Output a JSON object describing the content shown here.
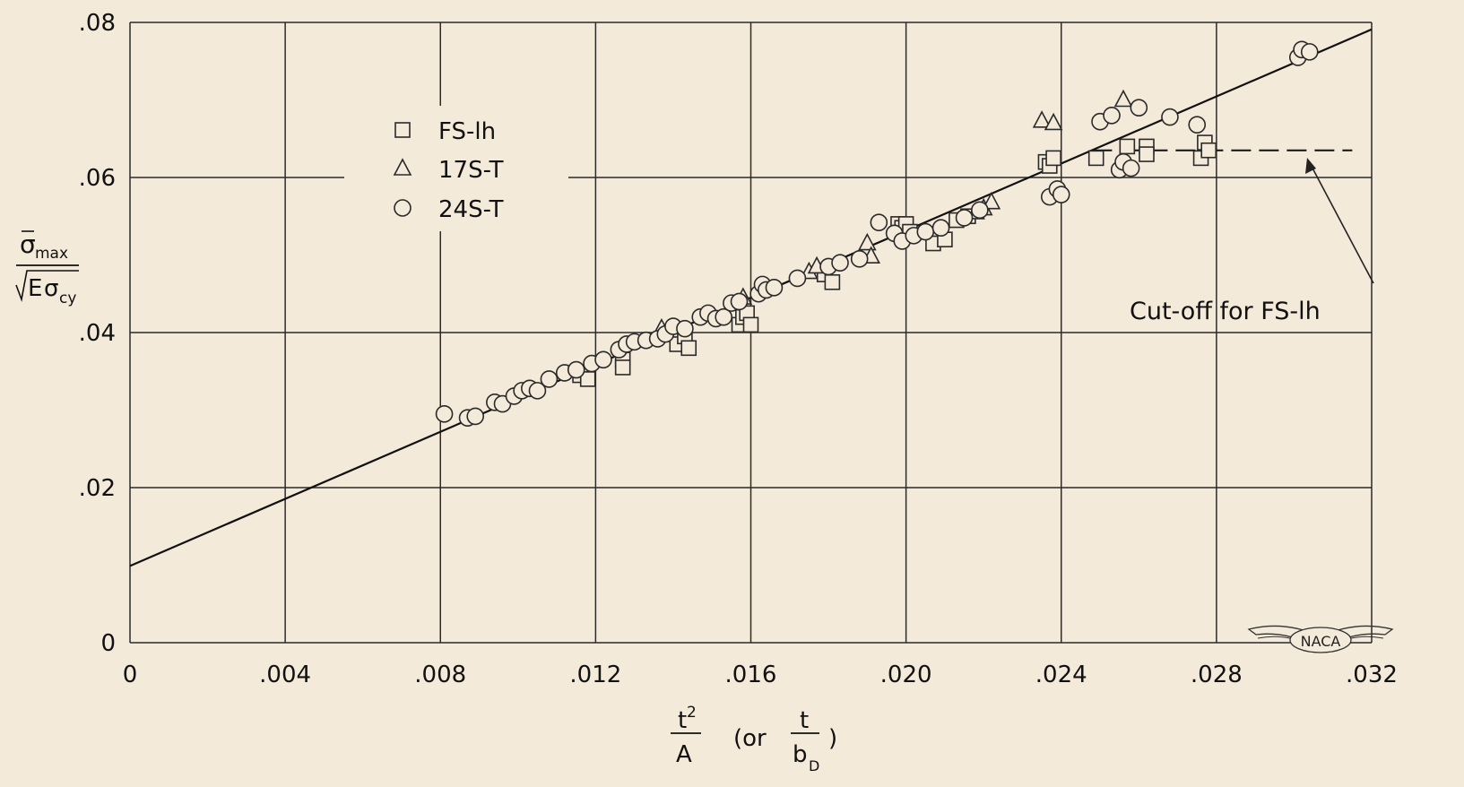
{
  "chart_data": {
    "type": "scatter",
    "xlim": [
      0,
      0.032
    ],
    "ylim": [
      0,
      0.08
    ],
    "grid": true,
    "legend_placement": "top-left",
    "xlabel": {
      "main_num": "t",
      "main_sup": "2",
      "main_den": "A",
      "or_text": "(or",
      "alt_num": "t",
      "alt_den": "b",
      "alt_den_sub": "D",
      "close": ")"
    },
    "ylabel": {
      "num_sym": "σ",
      "num_sub": "max",
      "den_prefix": "E",
      "den_sym": "σ",
      "den_sub": "cy"
    },
    "x_ticks": [
      {
        "value": 0,
        "label": "0"
      },
      {
        "value": 0.004,
        "label": ".004"
      },
      {
        "value": 0.008,
        "label": ".008"
      },
      {
        "value": 0.012,
        "label": ".012"
      },
      {
        "value": 0.016,
        "label": ".016"
      },
      {
        "value": 0.02,
        "label": ".020"
      },
      {
        "value": 0.024,
        "label": ".024"
      },
      {
        "value": 0.028,
        "label": ".028"
      },
      {
        "value": 0.032,
        "label": ".032"
      }
    ],
    "y_ticks": [
      {
        "value": 0,
        "label": "0"
      },
      {
        "value": 0.02,
        "label": ".02"
      },
      {
        "value": 0.04,
        "label": ".04"
      },
      {
        "value": 0.06,
        "label": ".06"
      },
      {
        "value": 0.08,
        "label": ".08"
      }
    ],
    "fit_line": {
      "x": [
        0,
        0.032
      ],
      "y": [
        0.0099,
        0.0791
      ]
    },
    "cutoff_line": {
      "label": "Cut-off for FS-lh",
      "x": [
        0.0248,
        0.0315
      ],
      "y": 0.0635
    },
    "series": [
      {
        "name": "FS-lh",
        "marker": "square",
        "points": [
          [
            0.0116,
            0.0345
          ],
          [
            0.0118,
            0.034
          ],
          [
            0.0127,
            0.0365
          ],
          [
            0.0127,
            0.0355
          ],
          [
            0.0141,
            0.0385
          ],
          [
            0.0143,
            0.0395
          ],
          [
            0.0144,
            0.038
          ],
          [
            0.0157,
            0.041
          ],
          [
            0.0158,
            0.042
          ],
          [
            0.0159,
            0.0425
          ],
          [
            0.016,
            0.041
          ],
          [
            0.0179,
            0.0475
          ],
          [
            0.0181,
            0.0465
          ],
          [
            0.0198,
            0.054
          ],
          [
            0.0199,
            0.0535
          ],
          [
            0.02,
            0.054
          ],
          [
            0.0201,
            0.053
          ],
          [
            0.0207,
            0.0515
          ],
          [
            0.021,
            0.052
          ],
          [
            0.0213,
            0.0545
          ],
          [
            0.0216,
            0.055
          ],
          [
            0.0236,
            0.062
          ],
          [
            0.0237,
            0.0615
          ],
          [
            0.0238,
            0.0625
          ],
          [
            0.0249,
            0.0625
          ],
          [
            0.0257,
            0.064
          ],
          [
            0.0262,
            0.064
          ],
          [
            0.0262,
            0.063
          ],
          [
            0.0276,
            0.0625
          ],
          [
            0.0277,
            0.0645
          ],
          [
            0.0278,
            0.0635
          ]
        ]
      },
      {
        "name": "17S-T",
        "marker": "triangle",
        "points": [
          [
            0.0137,
            0.0405
          ],
          [
            0.0158,
            0.0445
          ],
          [
            0.0175,
            0.0478
          ],
          [
            0.0177,
            0.0485
          ],
          [
            0.019,
            0.0515
          ],
          [
            0.0191,
            0.0498
          ],
          [
            0.0218,
            0.0555
          ],
          [
            0.022,
            0.056
          ],
          [
            0.0222,
            0.0568
          ],
          [
            0.0235,
            0.0673
          ],
          [
            0.0238,
            0.067
          ],
          [
            0.0256,
            0.07
          ]
        ]
      },
      {
        "name": "24S-T",
        "marker": "circle",
        "points": [
          [
            0.0081,
            0.0295
          ],
          [
            0.0087,
            0.029
          ],
          [
            0.0089,
            0.0292
          ],
          [
            0.0094,
            0.031
          ],
          [
            0.0096,
            0.0308
          ],
          [
            0.0099,
            0.0318
          ],
          [
            0.0101,
            0.0325
          ],
          [
            0.0103,
            0.0328
          ],
          [
            0.0105,
            0.0325
          ],
          [
            0.0108,
            0.034
          ],
          [
            0.0112,
            0.0348
          ],
          [
            0.0115,
            0.0352
          ],
          [
            0.0119,
            0.036
          ],
          [
            0.0122,
            0.0365
          ],
          [
            0.0126,
            0.0378
          ],
          [
            0.0128,
            0.0385
          ],
          [
            0.013,
            0.0388
          ],
          [
            0.0133,
            0.039
          ],
          [
            0.0136,
            0.0392
          ],
          [
            0.0138,
            0.0398
          ],
          [
            0.014,
            0.0408
          ],
          [
            0.0143,
            0.0405
          ],
          [
            0.0147,
            0.042
          ],
          [
            0.0149,
            0.0425
          ],
          [
            0.0151,
            0.0418
          ],
          [
            0.0153,
            0.042
          ],
          [
            0.0155,
            0.0438
          ],
          [
            0.0157,
            0.044
          ],
          [
            0.0162,
            0.045
          ],
          [
            0.0163,
            0.0462
          ],
          [
            0.0164,
            0.0455
          ],
          [
            0.0166,
            0.0458
          ],
          [
            0.0172,
            0.047
          ],
          [
            0.018,
            0.0485
          ],
          [
            0.0183,
            0.049
          ],
          [
            0.0188,
            0.0495
          ],
          [
            0.0193,
            0.0542
          ],
          [
            0.0197,
            0.0528
          ],
          [
            0.0199,
            0.0518
          ],
          [
            0.0202,
            0.0525
          ],
          [
            0.0205,
            0.053
          ],
          [
            0.0209,
            0.0535
          ],
          [
            0.0215,
            0.0548
          ],
          [
            0.0219,
            0.0558
          ],
          [
            0.0237,
            0.0575
          ],
          [
            0.0239,
            0.0585
          ],
          [
            0.024,
            0.0578
          ],
          [
            0.025,
            0.0672
          ],
          [
            0.0253,
            0.068
          ],
          [
            0.0255,
            0.061
          ],
          [
            0.0256,
            0.062
          ],
          [
            0.0258,
            0.0612
          ],
          [
            0.026,
            0.069
          ],
          [
            0.0268,
            0.0678
          ],
          [
            0.0275,
            0.0668
          ],
          [
            0.0301,
            0.0755
          ],
          [
            0.0302,
            0.0765
          ],
          [
            0.0304,
            0.0762
          ]
        ]
      }
    ]
  }
}
